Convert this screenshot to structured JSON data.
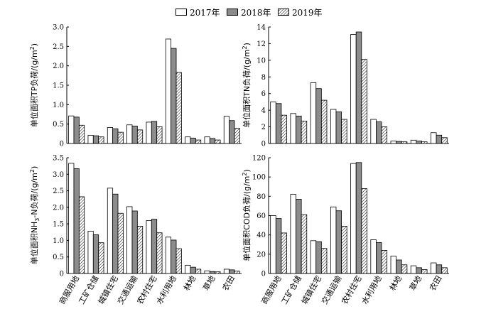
{
  "legend": {
    "items": [
      {
        "label": "2017年",
        "style": "white"
      },
      {
        "label": "2018年",
        "style": "gray"
      },
      {
        "label": "2019年",
        "style": "hatch"
      }
    ]
  },
  "colors": {
    "white": "#ffffff",
    "gray": "#8c8c8c",
    "hatch_line": "#000000",
    "stroke": "#000000"
  },
  "chart_data": [
    {
      "type": "bar",
      "id": "tp",
      "ylabel": "单位面积TP负荷/(g/m²)",
      "ylabel_parts": [
        "单位面积TP负荷/(g/m",
        "2",
        ")"
      ],
      "ylim": [
        0,
        3.0
      ],
      "yticks": [
        "0",
        "0.5",
        "1.0",
        "1.5",
        "2.0",
        "2.5",
        "3.0"
      ],
      "categories": [
        "商服用地",
        "工矿仓储",
        "城镇住宅",
        "交通运输",
        "农村住宅",
        "水利用地",
        "林地",
        "草地",
        "农田"
      ],
      "show_xlabels": false,
      "series": [
        {
          "name": "2017年",
          "values": [
            0.71,
            0.21,
            0.41,
            0.48,
            0.55,
            2.69,
            0.17,
            0.17,
            0.7
          ]
        },
        {
          "name": "2018年",
          "values": [
            0.68,
            0.2,
            0.38,
            0.45,
            0.57,
            2.45,
            0.14,
            0.13,
            0.59
          ]
        },
        {
          "name": "2019年",
          "values": [
            0.47,
            0.17,
            0.29,
            0.35,
            0.43,
            1.83,
            0.09,
            0.09,
            0.39
          ]
        }
      ]
    },
    {
      "type": "bar",
      "id": "tn",
      "ylabel": "单位面积TN负荷/(g/m²)",
      "ylabel_parts": [
        "单位面积TN负荷/(g/m",
        "2",
        ")"
      ],
      "ylim": [
        0,
        14
      ],
      "yticks": [
        "0",
        "2",
        "4",
        "6",
        "8",
        "10",
        "12",
        "14"
      ],
      "categories": [
        "商服用地",
        "工矿仓储",
        "城镇住宅",
        "交通运输",
        "农村住宅",
        "水利用地",
        "林地",
        "草地",
        "农田"
      ],
      "show_xlabels": false,
      "series": [
        {
          "name": "2017年",
          "values": [
            5.0,
            3.6,
            7.3,
            4.1,
            13.1,
            2.9,
            0.3,
            0.4,
            1.3
          ]
        },
        {
          "name": "2018年",
          "values": [
            4.8,
            3.3,
            6.6,
            3.8,
            13.4,
            2.6,
            0.25,
            0.3,
            1.0
          ]
        },
        {
          "name": "2019年",
          "values": [
            3.4,
            2.7,
            5.2,
            2.9,
            10.1,
            2.0,
            0.2,
            0.2,
            0.7
          ]
        }
      ]
    },
    {
      "type": "bar",
      "id": "nh3n",
      "ylabel": "单位面积NH₃-N负荷/(g/m²)",
      "ylabel_parts": [
        "单位面积NH",
        "3",
        "-N负荷/(g/m",
        "2",
        ")"
      ],
      "ylim": [
        0,
        3.5
      ],
      "yticks": [
        "0",
        "0.5",
        "1.0",
        "1.5",
        "2.0",
        "2.5",
        "3.0",
        "3.5"
      ],
      "categories": [
        "商服用地",
        "工矿仓储",
        "城镇住宅",
        "交通运输",
        "农村住宅",
        "水利用地",
        "林地",
        "草地",
        "农田"
      ],
      "show_xlabels": true,
      "series": [
        {
          "name": "2017年",
          "values": [
            3.33,
            1.28,
            2.58,
            2.02,
            1.6,
            1.1,
            0.25,
            0.08,
            0.13
          ]
        },
        {
          "name": "2018年",
          "values": [
            3.17,
            1.17,
            2.4,
            1.89,
            1.64,
            1.01,
            0.19,
            0.06,
            0.11
          ]
        },
        {
          "name": "2019年",
          "values": [
            2.32,
            0.93,
            1.82,
            1.43,
            1.23,
            0.75,
            0.13,
            0.05,
            0.07
          ]
        }
      ]
    },
    {
      "type": "bar",
      "id": "cod",
      "ylabel": "单位面积COD负荷/(g/m²)",
      "ylabel_parts": [
        "单位面积COD负荷/(g/m",
        "2",
        ")"
      ],
      "ylim": [
        0,
        120
      ],
      "yticks": [
        "0",
        "20",
        "40",
        "60",
        "80",
        "100",
        "120"
      ],
      "categories": [
        "商服用地",
        "工矿仓储",
        "城镇住宅",
        "交通运输",
        "农村住宅",
        "水利用地",
        "林地",
        "草地",
        "农田"
      ],
      "show_xlabels": true,
      "series": [
        {
          "name": "2017年",
          "values": [
            60,
            82,
            34,
            69,
            114,
            35,
            18,
            8,
            11
          ]
        },
        {
          "name": "2018年",
          "values": [
            57,
            77,
            33,
            65,
            115,
            32,
            14,
            6,
            9
          ]
        },
        {
          "name": "2019年",
          "values": [
            42,
            61,
            26,
            49,
            88,
            24,
            9,
            4,
            6
          ]
        }
      ]
    }
  ]
}
